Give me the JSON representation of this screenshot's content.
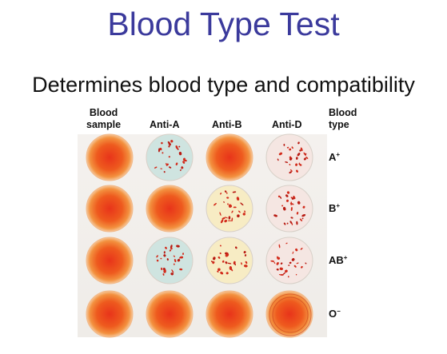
{
  "title": "Blood Type Test",
  "subtitle": "Determines blood type and compatibility",
  "columns": [
    "Blood\nsample",
    "Anti-A",
    "Anti-B",
    "Anti-D",
    "Blood\ntype"
  ],
  "rows": [
    {
      "type": "A",
      "rh": "+",
      "wells": [
        "smooth",
        "agglutinated-blue",
        "smooth",
        "agglutinated-pink"
      ]
    },
    {
      "type": "B",
      "rh": "+",
      "wells": [
        "smooth",
        "smooth",
        "agglutinated-yellow",
        "agglutinated-pink"
      ]
    },
    {
      "type": "AB",
      "rh": "+",
      "wells": [
        "smooth",
        "agglutinated-blue",
        "agglutinated-yellow",
        "agglutinated-pink"
      ]
    },
    {
      "type": "O",
      "rh": "−",
      "wells": [
        "smooth",
        "smooth",
        "smooth",
        "smooth-ringed"
      ]
    }
  ]
}
